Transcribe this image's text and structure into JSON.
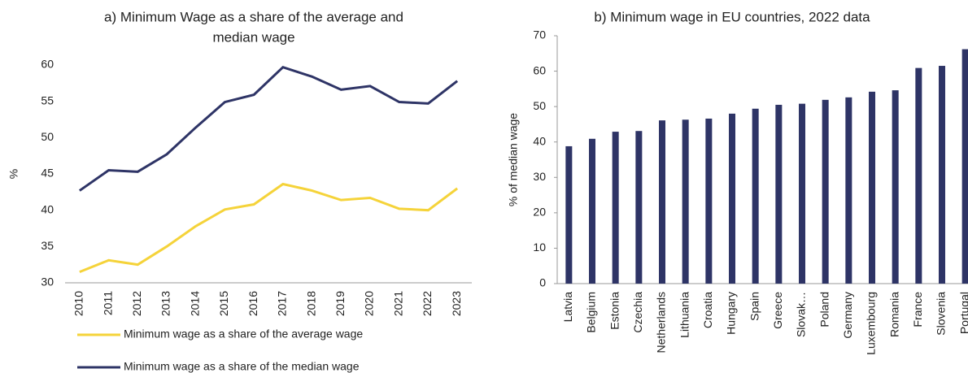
{
  "chart_data": [
    {
      "type": "line",
      "title_lines": [
        "a) Minimum Wage as a share of the average  and",
        "median wage"
      ],
      "y_label": "%",
      "categories": [
        "2010",
        "2011",
        "2012",
        "2013",
        "2014",
        "2015",
        "2016",
        "2017",
        "2018",
        "2019",
        "2020",
        "2021",
        "2022",
        "2023"
      ],
      "series": [
        {
          "name": "Minimum wage as a share of the average wage",
          "color": "#f5d33a",
          "values": [
            31.5,
            33.1,
            32.5,
            35.0,
            37.8,
            40.1,
            40.8,
            43.6,
            42.7,
            41.4,
            41.7,
            40.2,
            40.0,
            43.0
          ]
        },
        {
          "name": "Minimum wage as a share of the median wage",
          "color": "#2e3466",
          "values": [
            42.7,
            45.5,
            45.3,
            47.7,
            51.4,
            54.9,
            55.9,
            59.7,
            58.4,
            56.6,
            57.1,
            54.9,
            54.7,
            57.8
          ]
        }
      ],
      "ylim": [
        30,
        60
      ],
      "yticks": [
        30,
        35,
        40,
        45,
        50,
        55,
        60
      ],
      "legend": "bottom"
    },
    {
      "type": "bar",
      "title": "b) Minimum wage in EU countries, 2022 data",
      "y_label": "% of median wage",
      "categories": [
        "Latvia",
        "Belgium",
        "Estonia",
        "Czechia",
        "Netherlands",
        "Lithuania",
        "Croatia",
        "Hungary",
        "Spain",
        "Greece",
        "Slovak…",
        "Poland",
        "Germany",
        "Luxembourg",
        "Romania",
        "France",
        "Slovenia",
        "Portugal"
      ],
      "values": [
        38.8,
        40.9,
        42.9,
        43.1,
        46.1,
        46.3,
        46.6,
        48.0,
        49.4,
        50.5,
        50.8,
        51.9,
        52.6,
        54.2,
        54.6,
        60.9,
        61.5,
        66.2
      ],
      "color": "#2e3466",
      "ylim": [
        0,
        70
      ],
      "yticks": [
        0,
        10,
        20,
        30,
        40,
        50,
        60,
        70
      ]
    }
  ]
}
